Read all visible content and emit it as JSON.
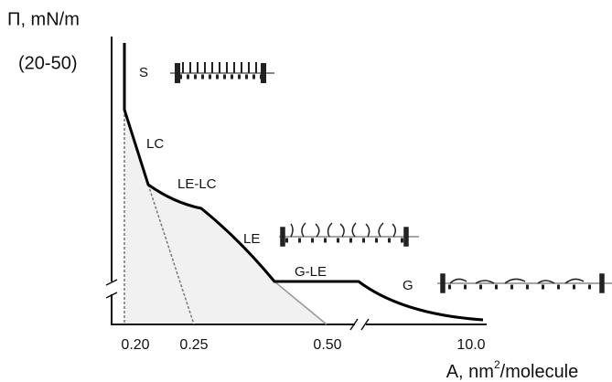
{
  "y_axis": {
    "label": "Π, mN/m",
    "range": "(20-50)"
  },
  "x_axis": {
    "label_start": "A, nm",
    "label_sup": "2",
    "label_end": "/molecule",
    "ticks": [
      "0.20",
      "0.25",
      "0.50",
      "10.0"
    ]
  },
  "phases": [
    "S",
    "LC",
    "LE-LC",
    "LE",
    "G-LE",
    "G"
  ]
}
